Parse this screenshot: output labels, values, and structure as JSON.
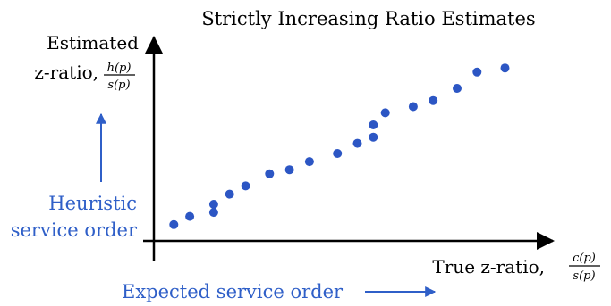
{
  "chart_data": {
    "type": "scatter",
    "title": "Strictly Increasing Ratio Estimates",
    "xlabel": {
      "text": "True z-ratio,",
      "fraction_numerator": "c(p)",
      "fraction_denominator": "s(p)"
    },
    "ylabel": {
      "line1": "Estimated",
      "line2": "z-ratio,",
      "fraction_numerator": "h(p)",
      "fraction_denominator": "s(p)"
    },
    "points": [
      {
        "x": 0.05,
        "y": 0.08
      },
      {
        "x": 0.09,
        "y": 0.12
      },
      {
        "x": 0.15,
        "y": 0.14
      },
      {
        "x": 0.15,
        "y": 0.18
      },
      {
        "x": 0.19,
        "y": 0.23
      },
      {
        "x": 0.23,
        "y": 0.27
      },
      {
        "x": 0.29,
        "y": 0.33
      },
      {
        "x": 0.34,
        "y": 0.35
      },
      {
        "x": 0.39,
        "y": 0.39
      },
      {
        "x": 0.46,
        "y": 0.43
      },
      {
        "x": 0.51,
        "y": 0.48
      },
      {
        "x": 0.55,
        "y": 0.51
      },
      {
        "x": 0.55,
        "y": 0.57
      },
      {
        "x": 0.58,
        "y": 0.63
      },
      {
        "x": 0.65,
        "y": 0.66
      },
      {
        "x": 0.7,
        "y": 0.69
      },
      {
        "x": 0.76,
        "y": 0.75
      },
      {
        "x": 0.81,
        "y": 0.83
      },
      {
        "x": 0.88,
        "y": 0.85
      }
    ],
    "point_color": "#2c56c4",
    "grid": false,
    "legend": "none"
  },
  "annotations": {
    "heuristic_line1": "Heuristic",
    "heuristic_line2": "service order",
    "expected": "Expected service order"
  },
  "colors": {
    "annotation": "#2f5fc8",
    "axis": "#000000"
  }
}
